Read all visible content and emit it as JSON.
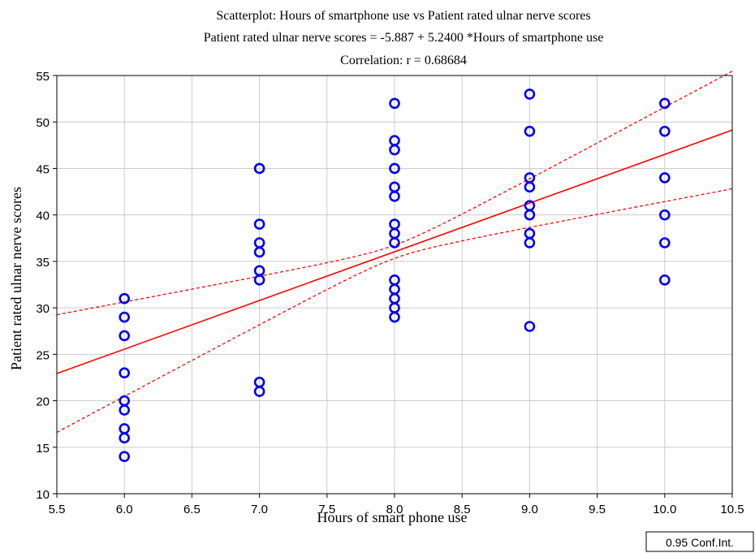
{
  "chart_data": {
    "type": "scatter",
    "title": "Scatterplot: Hours of smartphone use vs Patient rated ulnar nerve scores",
    "subtitle_equation": "Patient rated ulnar nerve scores = -5.887 + 5.2400 *Hours of smartphone use",
    "subtitle_correlation": "Correlation: r = 0.68684",
    "xlabel": "Hours of smart phone use",
    "ylabel": "Patient rated ulnar nerve scores",
    "xlim": [
      5.5,
      10.5
    ],
    "ylim": [
      10,
      55
    ],
    "x_ticks": [
      "5.5",
      "6.0",
      "6.5",
      "7.0",
      "7.5",
      "8.0",
      "8.5",
      "9.0",
      "9.5",
      "10.0",
      "10.5"
    ],
    "y_ticks": [
      "10",
      "15",
      "20",
      "25",
      "30",
      "35",
      "40",
      "45",
      "50",
      "55"
    ],
    "grid": true,
    "legend_label": "0.95 Conf.Int.",
    "legend_position": "bottom-right",
    "marker_color": "#0000ee",
    "line_color": "#ff0000",
    "regression": {
      "intercept": -5.887,
      "slope": 5.24
    },
    "confidence_band": {
      "upper": [
        [
          5.5,
          27.1
        ],
        [
          10.5,
          54.0
        ]
      ],
      "lower": [
        [
          5.5,
          18.6
        ],
        [
          10.5,
          44.4
        ]
      ],
      "pivot": [
        [
          8.0,
          36.0
        ]
      ]
    },
    "points": [
      {
        "x": 6,
        "y": 31
      },
      {
        "x": 6,
        "y": 29
      },
      {
        "x": 6,
        "y": 27
      },
      {
        "x": 6,
        "y": 23
      },
      {
        "x": 6,
        "y": 20
      },
      {
        "x": 6,
        "y": 19
      },
      {
        "x": 6,
        "y": 17
      },
      {
        "x": 6,
        "y": 16
      },
      {
        "x": 6,
        "y": 14
      },
      {
        "x": 7,
        "y": 45
      },
      {
        "x": 7,
        "y": 39
      },
      {
        "x": 7,
        "y": 37
      },
      {
        "x": 7,
        "y": 36
      },
      {
        "x": 7,
        "y": 34
      },
      {
        "x": 7,
        "y": 33
      },
      {
        "x": 7,
        "y": 22
      },
      {
        "x": 7,
        "y": 21
      },
      {
        "x": 8,
        "y": 52
      },
      {
        "x": 8,
        "y": 48
      },
      {
        "x": 8,
        "y": 47
      },
      {
        "x": 8,
        "y": 45
      },
      {
        "x": 8,
        "y": 43
      },
      {
        "x": 8,
        "y": 42
      },
      {
        "x": 8,
        "y": 39
      },
      {
        "x": 8,
        "y": 38
      },
      {
        "x": 8,
        "y": 37
      },
      {
        "x": 8,
        "y": 33
      },
      {
        "x": 8,
        "y": 32
      },
      {
        "x": 8,
        "y": 31
      },
      {
        "x": 8,
        "y": 30
      },
      {
        "x": 8,
        "y": 29
      },
      {
        "x": 9,
        "y": 53
      },
      {
        "x": 9,
        "y": 49
      },
      {
        "x": 9,
        "y": 44
      },
      {
        "x": 9,
        "y": 43
      },
      {
        "x": 9,
        "y": 41
      },
      {
        "x": 9,
        "y": 40
      },
      {
        "x": 9,
        "y": 38
      },
      {
        "x": 9,
        "y": 37
      },
      {
        "x": 9,
        "y": 28
      },
      {
        "x": 10,
        "y": 52
      },
      {
        "x": 10,
        "y": 49
      },
      {
        "x": 10,
        "y": 44
      },
      {
        "x": 10,
        "y": 40
      },
      {
        "x": 10,
        "y": 37
      },
      {
        "x": 10,
        "y": 33
      }
    ]
  }
}
